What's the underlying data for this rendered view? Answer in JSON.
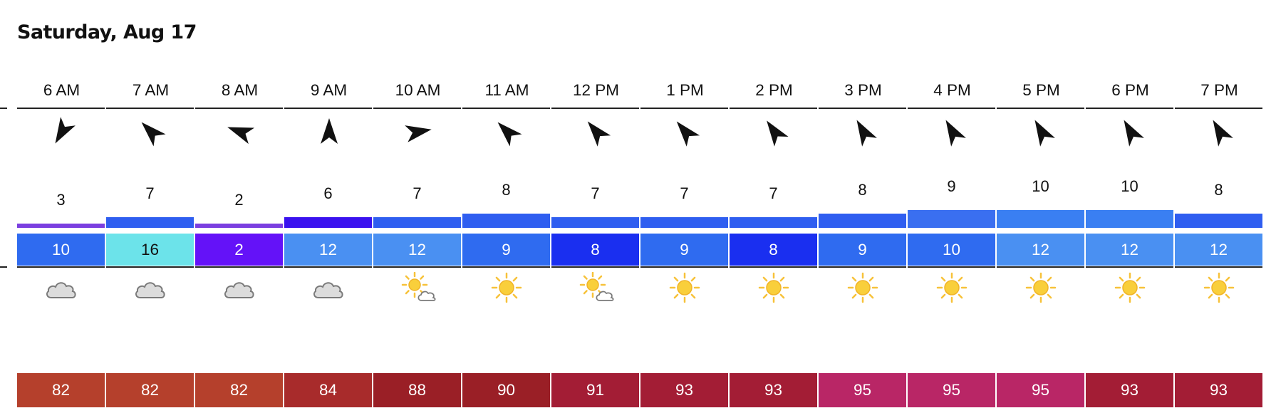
{
  "title": "Saturday, Aug 17",
  "hours": [
    {
      "label": "6 AM",
      "wind_dir_deg": 210,
      "gust": "3",
      "gust_color": "#7b3fe0",
      "speed": "10",
      "speed_color": "#2f6bf0",
      "speed_text_color": "#ffffff",
      "weather": "cloudy",
      "weather_icon": "cloud-icon",
      "temp": "82",
      "temp_color": "#b5402c"
    },
    {
      "label": "7 AM",
      "wind_dir_deg": 315,
      "gust": "7",
      "gust_color": "#2f5ef0",
      "speed": "16",
      "speed_color": "#6ce3ea",
      "speed_text_color": "#111111",
      "weather": "cloudy",
      "weather_icon": "cloud-icon",
      "temp": "82",
      "temp_color": "#b5402c"
    },
    {
      "label": "8 AM",
      "wind_dir_deg": 290,
      "gust": "2",
      "gust_color": "#7b3fe0",
      "speed": "2",
      "speed_color": "#6412f8",
      "speed_text_color": "#ffffff",
      "weather": "cloudy",
      "weather_icon": "cloud-icon",
      "temp": "82",
      "temp_color": "#b5402c"
    },
    {
      "label": "9 AM",
      "wind_dir_deg": 0,
      "gust": "6",
      "gust_color": "#3a12ef",
      "speed": "12",
      "speed_color": "#4a90f2",
      "speed_text_color": "#ffffff",
      "weather": "cloudy",
      "weather_icon": "cloud-icon",
      "temp": "84",
      "temp_color": "#a82b2b"
    },
    {
      "label": "10 AM",
      "wind_dir_deg": 80,
      "gust": "7",
      "gust_color": "#2f5ef0",
      "speed": "12",
      "speed_color": "#4a90f2",
      "speed_text_color": "#ffffff",
      "weather": "partly-cloudy",
      "weather_icon": "sun-cloud-icon",
      "temp": "88",
      "temp_color": "#9a1f26"
    },
    {
      "label": "11 AM",
      "wind_dir_deg": 315,
      "gust": "8",
      "gust_color": "#2f5ef0",
      "speed": "9",
      "speed_color": "#2f6bf0",
      "speed_text_color": "#ffffff",
      "weather": "sunny",
      "weather_icon": "sun-icon",
      "temp": "90",
      "temp_color": "#9a1f26"
    },
    {
      "label": "12 PM",
      "wind_dir_deg": 320,
      "gust": "7",
      "gust_color": "#2f5ef0",
      "speed": "8",
      "speed_color": "#1a2ff0",
      "speed_text_color": "#ffffff",
      "weather": "partly-cloudy",
      "weather_icon": "sun-cloud-icon",
      "temp": "91",
      "temp_color": "#a31d35"
    },
    {
      "label": "1 PM",
      "wind_dir_deg": 320,
      "gust": "7",
      "gust_color": "#2f5ef0",
      "speed": "9",
      "speed_color": "#2f6bf0",
      "speed_text_color": "#ffffff",
      "weather": "sunny",
      "weather_icon": "sun-icon",
      "temp": "93",
      "temp_color": "#a31d35"
    },
    {
      "label": "2 PM",
      "wind_dir_deg": 325,
      "gust": "7",
      "gust_color": "#2f5ef0",
      "speed": "8",
      "speed_color": "#1a2ff0",
      "speed_text_color": "#ffffff",
      "weather": "sunny",
      "weather_icon": "sun-icon",
      "temp": "93",
      "temp_color": "#a31d35"
    },
    {
      "label": "3 PM",
      "wind_dir_deg": 330,
      "gust": "8",
      "gust_color": "#2f5ef0",
      "speed": "9",
      "speed_color": "#2f6bf0",
      "speed_text_color": "#ffffff",
      "weather": "sunny",
      "weather_icon": "sun-icon",
      "temp": "95",
      "temp_color": "#b92666"
    },
    {
      "label": "4 PM",
      "wind_dir_deg": 330,
      "gust": "9",
      "gust_color": "#3a6ff0",
      "speed": "10",
      "speed_color": "#2f6bf0",
      "speed_text_color": "#ffffff",
      "weather": "sunny",
      "weather_icon": "sun-icon",
      "temp": "95",
      "temp_color": "#b92666"
    },
    {
      "label": "5 PM",
      "wind_dir_deg": 330,
      "gust": "10",
      "gust_color": "#3a7ff2",
      "speed": "12",
      "speed_color": "#4a90f2",
      "speed_text_color": "#ffffff",
      "weather": "sunny",
      "weather_icon": "sun-icon",
      "temp": "95",
      "temp_color": "#b92666"
    },
    {
      "label": "6 PM",
      "wind_dir_deg": 330,
      "gust": "10",
      "gust_color": "#3a7ff2",
      "speed": "12",
      "speed_color": "#4a90f2",
      "speed_text_color": "#ffffff",
      "weather": "sunny",
      "weather_icon": "sun-icon",
      "temp": "93",
      "temp_color": "#a31d35"
    },
    {
      "label": "7 PM",
      "wind_dir_deg": 330,
      "gust": "8",
      "gust_color": "#2f5ef0",
      "speed": "12",
      "speed_color": "#4a90f2",
      "speed_text_color": "#ffffff",
      "weather": "sunny",
      "weather_icon": "sun-icon",
      "temp": "93",
      "temp_color": "#a31d35"
    }
  ]
}
